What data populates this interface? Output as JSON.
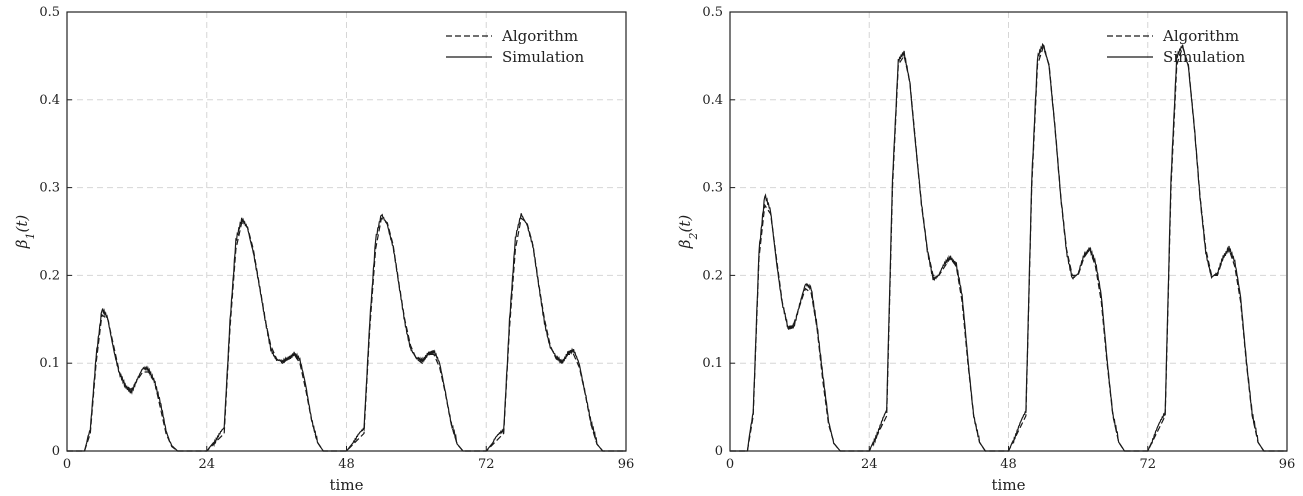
{
  "chart_data": [
    {
      "type": "line",
      "xlabel": "time",
      "ylabel": "β1(t)",
      "ylabel_base": "β",
      "ylabel_sub": "1",
      "ylabel_arg": "(t)",
      "xlim": [
        0,
        96
      ],
      "ylim": [
        0,
        0.5
      ],
      "xticks": [
        0,
        24,
        48,
        72,
        96
      ],
      "yticks": [
        0,
        0.1,
        0.2,
        0.3,
        0.4,
        0.5
      ],
      "grid": true,
      "legend_position": "top-right",
      "series": [
        {
          "name": "Algorithm",
          "style": "dashed",
          "x": [
            0,
            3,
            4,
            5,
            6,
            7,
            8,
            9,
            10,
            11,
            12,
            13,
            14,
            15,
            16,
            17,
            18,
            19,
            20,
            24,
            27,
            28,
            29,
            30,
            31,
            32,
            33,
            34,
            35,
            36,
            37,
            38,
            39,
            40,
            41,
            42,
            43,
            44,
            48,
            51,
            52,
            53,
            54,
            55,
            56,
            57,
            58,
            59,
            60,
            61,
            62,
            63,
            64,
            65,
            66,
            67,
            68,
            72,
            75,
            76,
            77,
            78,
            79,
            80,
            81,
            82,
            83,
            84,
            85,
            86,
            87,
            88,
            89,
            90,
            91,
            92,
            96
          ],
          "y": [
            0,
            0,
            0.02,
            0.1,
            0.155,
            0.15,
            0.12,
            0.09,
            0.075,
            0.07,
            0.08,
            0.09,
            0.09,
            0.08,
            0.05,
            0.02,
            0.005,
            0,
            0,
            0,
            0.02,
            0.14,
            0.23,
            0.26,
            0.255,
            0.23,
            0.19,
            0.15,
            0.12,
            0.105,
            0.1,
            0.105,
            0.11,
            0.1,
            0.07,
            0.035,
            0.01,
            0,
            0,
            0.02,
            0.14,
            0.23,
            0.265,
            0.26,
            0.235,
            0.19,
            0.15,
            0.12,
            0.105,
            0.1,
            0.11,
            0.11,
            0.095,
            0.065,
            0.03,
            0.008,
            0,
            0,
            0.02,
            0.14,
            0.23,
            0.265,
            0.26,
            0.235,
            0.19,
            0.15,
            0.12,
            0.105,
            0.1,
            0.11,
            0.11,
            0.095,
            0.065,
            0.03,
            0.008,
            0,
            0
          ]
        },
        {
          "name": "Simulation",
          "style": "solid",
          "x": [
            0,
            3,
            4,
            5,
            6,
            7,
            8,
            9,
            10,
            11,
            12,
            13,
            14,
            15,
            16,
            17,
            18,
            19,
            20,
            24,
            27,
            28,
            29,
            30,
            31,
            32,
            33,
            34,
            35,
            36,
            37,
            38,
            39,
            40,
            41,
            42,
            43,
            44,
            48,
            51,
            52,
            53,
            54,
            55,
            56,
            57,
            58,
            59,
            60,
            61,
            62,
            63,
            64,
            65,
            66,
            67,
            68,
            72,
            75,
            76,
            77,
            78,
            79,
            80,
            81,
            82,
            83,
            84,
            85,
            86,
            87,
            88,
            89,
            90,
            91,
            92,
            96
          ],
          "y": [
            0,
            0,
            0.025,
            0.11,
            0.16,
            0.15,
            0.118,
            0.088,
            0.072,
            0.068,
            0.082,
            0.092,
            0.093,
            0.082,
            0.055,
            0.022,
            0.006,
            0,
            0,
            0,
            0.025,
            0.15,
            0.24,
            0.262,
            0.255,
            0.228,
            0.188,
            0.15,
            0.118,
            0.103,
            0.1,
            0.107,
            0.112,
            0.102,
            0.075,
            0.038,
            0.01,
            0,
            0,
            0.025,
            0.15,
            0.24,
            0.268,
            0.26,
            0.233,
            0.188,
            0.148,
            0.118,
            0.104,
            0.102,
            0.113,
            0.113,
            0.098,
            0.068,
            0.032,
            0.008,
            0,
            0,
            0.025,
            0.15,
            0.24,
            0.27,
            0.26,
            0.233,
            0.188,
            0.148,
            0.118,
            0.105,
            0.102,
            0.113,
            0.113,
            0.098,
            0.068,
            0.032,
            0.008,
            0,
            0
          ]
        }
      ]
    },
    {
      "type": "line",
      "xlabel": "time",
      "ylabel": "β2(t)",
      "ylabel_base": "β",
      "ylabel_sub": "2",
      "ylabel_arg": "(t)",
      "xlim": [
        0,
        96
      ],
      "ylim": [
        0,
        0.5
      ],
      "xticks": [
        0,
        24,
        48,
        72,
        96
      ],
      "yticks": [
        0,
        0.1,
        0.2,
        0.3,
        0.4,
        0.5
      ],
      "grid": true,
      "legend_position": "top-right",
      "series": [
        {
          "name": "Algorithm",
          "style": "dashed",
          "x": [
            0,
            3,
            4,
            5,
            6,
            7,
            8,
            9,
            10,
            11,
            12,
            13,
            14,
            15,
            16,
            17,
            18,
            19,
            20,
            24,
            27,
            28,
            29,
            30,
            31,
            32,
            33,
            34,
            35,
            36,
            37,
            38,
            39,
            40,
            41,
            42,
            43,
            44,
            48,
            51,
            52,
            53,
            54,
            55,
            56,
            57,
            58,
            59,
            60,
            61,
            62,
            63,
            64,
            65,
            66,
            67,
            68,
            72,
            75,
            76,
            77,
            78,
            79,
            80,
            81,
            82,
            83,
            84,
            85,
            86,
            87,
            88,
            89,
            90,
            91,
            92,
            96
          ],
          "y": [
            0,
            0,
            0.04,
            0.22,
            0.28,
            0.27,
            0.22,
            0.17,
            0.14,
            0.145,
            0.165,
            0.185,
            0.18,
            0.14,
            0.08,
            0.03,
            0.008,
            0,
            0,
            0,
            0.04,
            0.3,
            0.44,
            0.45,
            0.42,
            0.35,
            0.28,
            0.23,
            0.2,
            0.2,
            0.21,
            0.22,
            0.21,
            0.17,
            0.1,
            0.04,
            0.01,
            0,
            0,
            0.04,
            0.3,
            0.44,
            0.46,
            0.44,
            0.37,
            0.29,
            0.23,
            0.2,
            0.2,
            0.22,
            0.23,
            0.21,
            0.17,
            0.1,
            0.04,
            0.01,
            0,
            0,
            0.04,
            0.3,
            0.44,
            0.46,
            0.44,
            0.37,
            0.29,
            0.23,
            0.2,
            0.2,
            0.22,
            0.23,
            0.21,
            0.17,
            0.1,
            0.04,
            0.01,
            0,
            0
          ]
        },
        {
          "name": "Simulation",
          "style": "solid",
          "x": [
            0,
            3,
            4,
            5,
            6,
            7,
            8,
            9,
            10,
            11,
            12,
            13,
            14,
            15,
            16,
            17,
            18,
            19,
            20,
            24,
            27,
            28,
            29,
            30,
            31,
            32,
            33,
            34,
            35,
            36,
            37,
            38,
            39,
            40,
            41,
            42,
            43,
            44,
            48,
            51,
            52,
            53,
            54,
            55,
            56,
            57,
            58,
            59,
            60,
            61,
            62,
            63,
            64,
            65,
            66,
            67,
            68,
            72,
            75,
            76,
            77,
            78,
            79,
            80,
            81,
            82,
            83,
            84,
            85,
            86,
            87,
            88,
            89,
            90,
            91,
            92,
            96
          ],
          "y": [
            0,
            0,
            0.045,
            0.23,
            0.29,
            0.272,
            0.218,
            0.168,
            0.138,
            0.143,
            0.168,
            0.188,
            0.185,
            0.145,
            0.085,
            0.032,
            0.008,
            0,
            0,
            0,
            0.045,
            0.31,
            0.445,
            0.452,
            0.42,
            0.35,
            0.28,
            0.228,
            0.198,
            0.2,
            0.212,
            0.222,
            0.214,
            0.175,
            0.105,
            0.042,
            0.01,
            0,
            0,
            0.045,
            0.31,
            0.447,
            0.462,
            0.44,
            0.37,
            0.288,
            0.228,
            0.198,
            0.2,
            0.222,
            0.233,
            0.214,
            0.175,
            0.105,
            0.042,
            0.01,
            0,
            0,
            0.045,
            0.31,
            0.447,
            0.462,
            0.44,
            0.37,
            0.288,
            0.228,
            0.198,
            0.2,
            0.222,
            0.233,
            0.214,
            0.175,
            0.105,
            0.042,
            0.01,
            0,
            0
          ]
        }
      ]
    }
  ]
}
